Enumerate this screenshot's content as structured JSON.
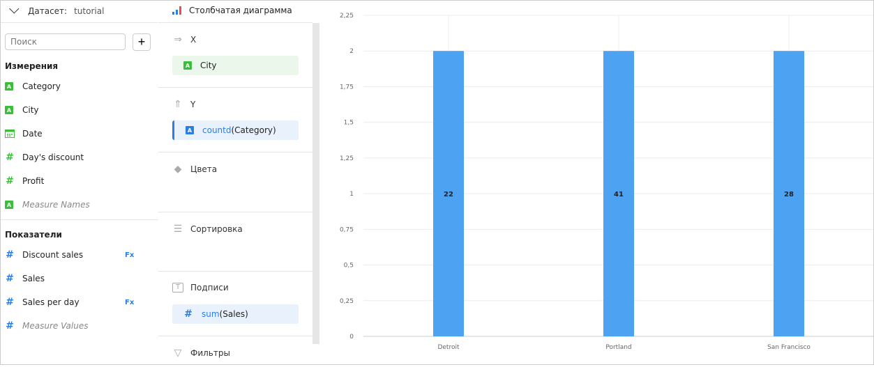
{
  "dataset": {
    "label": "Датасет:",
    "value": "tutorial"
  },
  "search": {
    "placeholder": "Поиск"
  },
  "add_label": "+",
  "dimensions": {
    "title": "Измерения",
    "items": [
      {
        "label": "Category",
        "type": "string"
      },
      {
        "label": "City",
        "type": "string"
      },
      {
        "label": "Date",
        "type": "date"
      },
      {
        "label": "Day's discount",
        "type": "number"
      },
      {
        "label": "Profit",
        "type": "number"
      },
      {
        "label": "Measure Names",
        "type": "string",
        "italic": true
      }
    ]
  },
  "measures": {
    "title": "Показатели",
    "items": [
      {
        "label": "Discount sales",
        "formula": true
      },
      {
        "label": "Sales"
      },
      {
        "label": "Sales per day",
        "formula": true
      },
      {
        "label": "Measure Values",
        "italic": true
      }
    ]
  },
  "fx_label": "Fx",
  "viz": {
    "type_label": "Столбчатая диаграмма",
    "sections": {
      "x": "X",
      "y": "Y",
      "colors": "Цвета",
      "sort": "Сортировка",
      "labels": "Подписи",
      "filters": "Фильтры"
    },
    "x_field": "City",
    "y_field_fn": "countd",
    "y_field_arg": "(Category)",
    "label_field_fn": "sum",
    "label_field_arg": "(Sales)"
  },
  "colors": {
    "bar": "#4da2f1",
    "green": "#3bbf3b",
    "blue": "#2a7fe4"
  },
  "chart_data": {
    "type": "bar",
    "categories": [
      "Detroit",
      "Portland",
      "San Francisco"
    ],
    "values": [
      2,
      2,
      2
    ],
    "data_labels": [
      "22",
      "41",
      "28"
    ],
    "ylim": [
      0,
      2.25
    ],
    "yticks": [
      "0",
      "0,25",
      "0,5",
      "0,75",
      "1",
      "1,25",
      "1,5",
      "1,75",
      "2",
      "2,25"
    ],
    "grid": true
  }
}
